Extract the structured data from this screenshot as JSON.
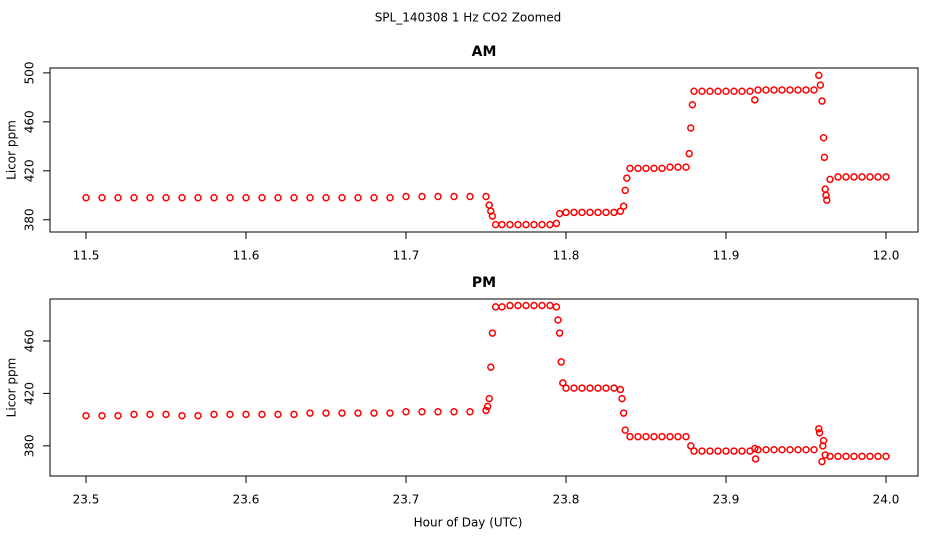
{
  "title": "SPL_140308  1 Hz CO2 Zoomed",
  "x_label": "Hour of Day (UTC)",
  "chart_data": [
    {
      "type": "scatter",
      "title": "AM",
      "y_label": "Licor ppm",
      "color": "#ff0000",
      "xlim": [
        11.4775,
        12.02
      ],
      "xticks": [
        11.5,
        11.6,
        11.7,
        11.8,
        11.9,
        {
          "value": 12,
          "label": "12.0"
        }
      ],
      "ylim": [
        370,
        504
      ],
      "yticks": [
        380,
        420,
        460,
        500
      ],
      "x": [
        11.5,
        11.51,
        11.52,
        11.53,
        11.54,
        11.55,
        11.56,
        11.57,
        11.58,
        11.59,
        11.6,
        11.61,
        11.62,
        11.63,
        11.64,
        11.65,
        11.66,
        11.67,
        11.68,
        11.69,
        11.7,
        11.71,
        11.72,
        11.73,
        11.74,
        11.75,
        11.752,
        11.753,
        11.754,
        11.756,
        11.76,
        11.765,
        11.77,
        11.775,
        11.78,
        11.785,
        11.79,
        11.794,
        11.796,
        11.8,
        11.805,
        11.81,
        11.815,
        11.82,
        11.825,
        11.83,
        11.834,
        11.836,
        11.837,
        11.838,
        11.84,
        11.845,
        11.85,
        11.855,
        11.86,
        11.865,
        11.87,
        11.875,
        11.877,
        11.878,
        11.879,
        11.88,
        11.885,
        11.89,
        11.895,
        11.9,
        11.905,
        11.91,
        11.915,
        11.918,
        11.92,
        11.925,
        11.93,
        11.935,
        11.94,
        11.945,
        11.95,
        11.955,
        11.958,
        11.959,
        11.96,
        11.961,
        11.9615,
        11.962,
        11.9625,
        11.963,
        11.965,
        11.97,
        11.975,
        11.98,
        11.985,
        11.99,
        11.995,
        12.0
      ],
      "values": [
        398,
        398,
        398,
        398,
        398,
        398,
        398,
        398,
        398,
        398,
        398,
        398,
        398,
        398,
        398,
        398,
        398,
        398,
        398,
        398,
        399,
        399,
        399,
        399,
        399,
        399,
        392,
        387,
        383,
        376,
        376,
        376,
        376,
        376,
        376,
        376,
        376,
        377,
        385,
        386,
        386,
        386,
        386,
        386,
        386,
        386,
        387,
        391,
        404,
        414,
        422,
        422,
        422,
        422,
        422,
        423,
        423,
        423,
        434,
        455,
        474,
        485,
        485,
        485,
        485,
        485,
        485,
        485,
        485,
        478,
        486,
        486,
        486,
        486,
        486,
        486,
        486,
        486,
        498,
        490,
        477,
        447,
        431,
        405,
        400,
        396,
        413,
        415,
        415,
        415,
        415,
        415,
        415,
        415
      ]
    },
    {
      "type": "scatter",
      "title": "PM",
      "y_label": "Licor ppm",
      "color": "#ff0000",
      "xlim": [
        23.4775,
        24.02
      ],
      "xticks": [
        23.5,
        23.6,
        23.7,
        23.8,
        23.9,
        {
          "value": 24,
          "label": "24.0"
        }
      ],
      "ylim": [
        357,
        492
      ],
      "yticks": [
        380,
        420,
        460
      ],
      "x": [
        23.5,
        23.51,
        23.52,
        23.53,
        23.54,
        23.55,
        23.56,
        23.57,
        23.58,
        23.59,
        23.6,
        23.61,
        23.62,
        23.63,
        23.64,
        23.65,
        23.66,
        23.67,
        23.68,
        23.69,
        23.7,
        23.71,
        23.72,
        23.73,
        23.74,
        23.75,
        23.751,
        23.752,
        23.753,
        23.754,
        23.756,
        23.76,
        23.765,
        23.77,
        23.775,
        23.78,
        23.785,
        23.79,
        23.794,
        23.795,
        23.796,
        23.797,
        23.798,
        23.8,
        23.805,
        23.81,
        23.815,
        23.82,
        23.825,
        23.83,
        23.834,
        23.835,
        23.836,
        23.837,
        23.84,
        23.845,
        23.85,
        23.855,
        23.86,
        23.865,
        23.87,
        23.875,
        23.878,
        23.88,
        23.885,
        23.89,
        23.895,
        23.9,
        23.905,
        23.91,
        23.915,
        23.918,
        23.9185,
        23.92,
        23.925,
        23.93,
        23.935,
        23.94,
        23.945,
        23.95,
        23.955,
        23.958,
        23.9585,
        23.96,
        23.9605,
        23.961,
        23.962,
        23.965,
        23.97,
        23.975,
        23.98,
        23.985,
        23.99,
        23.995,
        24.0
      ],
      "values": [
        403,
        403,
        403,
        404,
        404,
        404,
        403,
        403,
        404,
        404,
        404,
        404,
        404,
        404,
        405,
        405,
        405,
        405,
        405,
        405,
        406,
        406,
        406,
        406,
        406,
        407,
        410,
        416,
        440,
        466,
        486,
        486,
        487,
        487,
        487,
        487,
        487,
        487,
        486,
        476,
        466,
        444,
        428,
        424,
        424,
        424,
        424,
        424,
        424,
        424,
        423,
        416,
        405,
        392,
        387,
        387,
        387,
        387,
        387,
        387,
        387,
        387,
        380,
        376,
        376,
        376,
        376,
        376,
        376,
        376,
        376,
        378,
        370,
        377,
        377,
        377,
        377,
        377,
        377,
        377,
        377,
        393,
        390,
        368,
        380,
        384,
        373,
        372,
        372,
        372,
        372,
        372,
        372,
        372,
        372
      ]
    }
  ]
}
